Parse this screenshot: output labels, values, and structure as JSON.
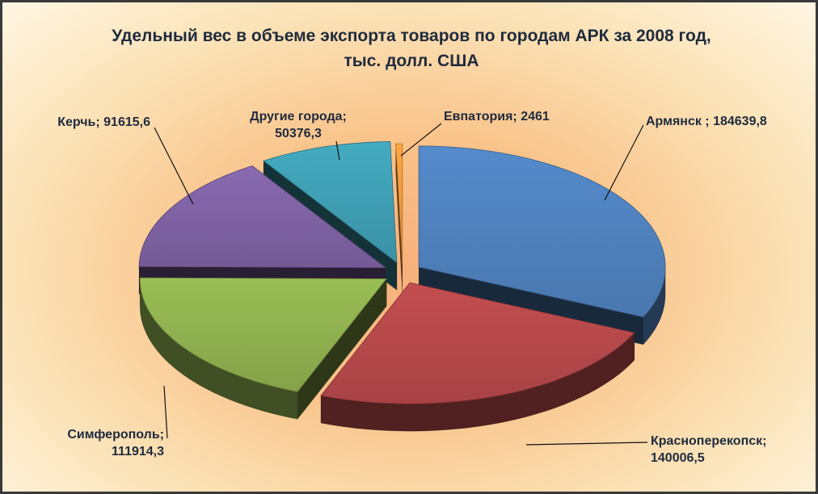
{
  "chart_data": {
    "type": "pie",
    "style": "3d-exploded",
    "title_lines": [
      "Удельный вес в объеме экспорта товаров по городам АРК за 2008 год,",
      "тыс. долл. США"
    ],
    "slices": [
      {
        "name": "Армянск ",
        "value": 184639.8,
        "value_label": "184639,8",
        "color": "#4f81bd",
        "label_lines": [
          "Армянск ; 184639,8"
        ]
      },
      {
        "name": "Красноперекопск",
        "value": 140006.5,
        "value_label": "140006,5",
        "color": "#b5484a",
        "label_lines": [
          "Красноперекопск;",
          "140006,5"
        ]
      },
      {
        "name": "Симферополь",
        "value": 111914.3,
        "value_label": "111914,3",
        "color": "#8fb04f",
        "label_lines": [
          "Симферополь;",
          "111914,3"
        ]
      },
      {
        "name": "Керчь",
        "value": 91615.6,
        "value_label": "91615,6",
        "color": "#7e62a3",
        "label_lines": [
          "Керчь; 91615,6"
        ]
      },
      {
        "name": "Другие города",
        "value": 50376.3,
        "value_label": "50376,3",
        "color": "#3f9eb3",
        "label_lines": [
          "Другие города;",
          "50376,3"
        ]
      },
      {
        "name": "Евпатория",
        "value": 2461,
        "value_label": "2461",
        "color": "#f29a3c",
        "label_lines": [
          "Евпатория; 2461"
        ]
      }
    ]
  }
}
